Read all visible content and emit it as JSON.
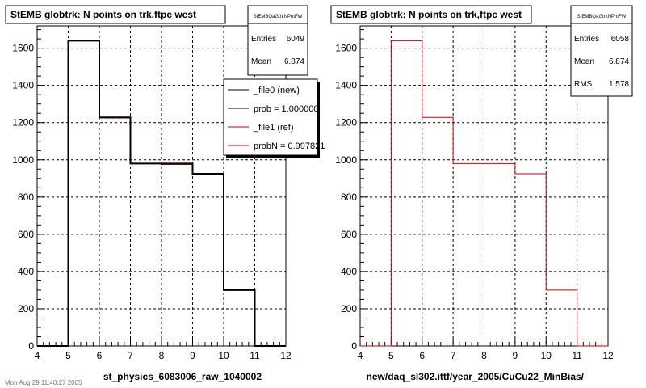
{
  "footer_text": "Mon Aug 29 11:40:27 2005",
  "chart_data": [
    {
      "type": "bar",
      "subtype": "histogram",
      "title": "StEMB globtrk: N points on trk,ftpc west",
      "xlabel": "st_physics_6083006_raw_1040002",
      "ylabel": "",
      "xlim": [
        4,
        12
      ],
      "ylim": [
        0,
        1720
      ],
      "grid": true,
      "x_ticks": [
        "4",
        "5",
        "6",
        "7",
        "8",
        "9",
        "10",
        "11",
        "12"
      ],
      "y_ticks": [
        "0",
        "200",
        "400",
        "600",
        "800",
        "1000",
        "1200",
        "1400",
        "1600"
      ],
      "bin_edges": [
        4,
        5,
        6,
        7,
        8,
        9,
        10,
        11,
        12
      ],
      "series": [
        {
          "name": "_file0 (new)",
          "color": "#000000",
          "values": [
            0,
            1640,
            1228,
            980,
            980,
            925,
            300,
            0
          ]
        },
        {
          "name": "_file1 (ref)",
          "color": "#cc0000",
          "values": [
            0,
            1640,
            1225,
            980,
            975,
            925,
            300,
            0
          ]
        }
      ],
      "stats": {
        "title": "StEMBQaGtrkNPntFW",
        "rows": [
          {
            "label": "Entries",
            "value": "6049"
          },
          {
            "label": "Mean",
            "value": "6.874"
          }
        ]
      },
      "legend": {
        "position": "top-right",
        "entries": [
          {
            "text": "_file0 (new)",
            "color": "#000000"
          },
          {
            "text": "prob = 1.000000",
            "color": "#000000"
          },
          {
            "text": "_file1 (ref)",
            "color": "#cc0000"
          },
          {
            "text": "probN = 0.997821",
            "color": "#cc0000"
          }
        ]
      }
    },
    {
      "type": "bar",
      "subtype": "histogram",
      "title": "StEMB globtrk: N points on trk,ftpc west",
      "xlabel": "new/daq_sl302.ittf/year_2005/CuCu22_MinBias/",
      "ylabel": "",
      "xlim": [
        4,
        12
      ],
      "ylim": [
        0,
        1720
      ],
      "grid": true,
      "x_ticks": [
        "4",
        "5",
        "6",
        "7",
        "8",
        "9",
        "10",
        "11",
        "12"
      ],
      "y_ticks": [
        "0",
        "200",
        "400",
        "600",
        "800",
        "1000",
        "1200",
        "1400",
        "1600"
      ],
      "bin_edges": [
        4,
        5,
        6,
        7,
        8,
        9,
        10,
        11,
        12
      ],
      "series": [
        {
          "name": "",
          "color": "#cc0000",
          "values": [
            0,
            1640,
            1228,
            980,
            980,
            925,
            300,
            0
          ]
        }
      ],
      "stats": {
        "title": "StEMBQaGtrkNPntFW",
        "rows": [
          {
            "label": "Entries",
            "value": "6058"
          },
          {
            "label": "Mean",
            "value": "6.874"
          },
          {
            "label": "RMS",
            "value": "1.578"
          }
        ]
      }
    }
  ]
}
